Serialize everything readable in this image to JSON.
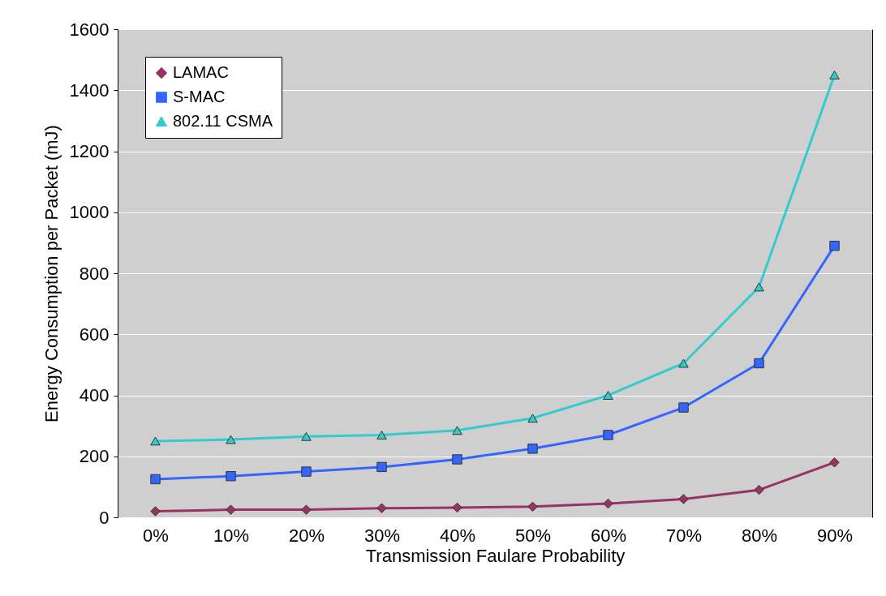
{
  "chart_data": {
    "type": "line",
    "xlabel": "Transmission Faulare Probability",
    "ylabel": "Energy  Consumption per Packet (mJ)",
    "categories": [
      "0%",
      "10%",
      "20%",
      "30%",
      "40%",
      "50%",
      "60%",
      "70%",
      "80%",
      "90%"
    ],
    "series": [
      {
        "name": "LAMAC",
        "color": "#993366",
        "marker": "diamond",
        "values": [
          20,
          25,
          25,
          30,
          32,
          35,
          45,
          60,
          90,
          180
        ]
      },
      {
        "name": "S-MAC",
        "color": "#3366ff",
        "marker": "square",
        "values": [
          125,
          135,
          150,
          165,
          190,
          225,
          270,
          360,
          505,
          890
        ]
      },
      {
        "name": "802.11 CSMA",
        "color": "#33cccc",
        "marker": "triangle",
        "values": [
          250,
          255,
          265,
          270,
          285,
          325,
          400,
          505,
          755,
          1450
        ]
      }
    ],
    "ylim": [
      0,
      1600
    ],
    "yticks": [
      0,
      200,
      400,
      600,
      800,
      1000,
      1200,
      1400,
      1600
    ],
    "grid": "y",
    "legend": "top left",
    "line_style": "solid"
  }
}
